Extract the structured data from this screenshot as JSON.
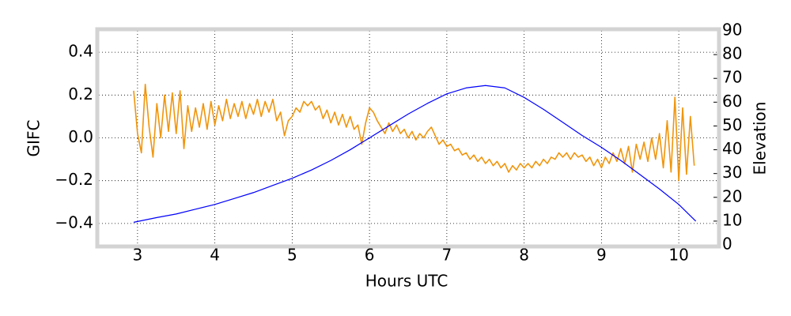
{
  "chart_data": {
    "type": "line",
    "x_label": "Hours UTC",
    "y_label": "GIFC",
    "y2_label": "Elevation",
    "xlim": [
      2.5,
      10.5
    ],
    "xticks": [
      3,
      4,
      5,
      6,
      7,
      8,
      9,
      10
    ],
    "ylim": [
      -0.5,
      0.5
    ],
    "yticks": [
      {
        "value": -0.4,
        "label": "−0.4"
      },
      {
        "value": -0.2,
        "label": "−0.2"
      },
      {
        "value": 0,
        "label": "0.0"
      },
      0.2,
      0.4
    ],
    "y2lim": [
      0,
      90
    ],
    "y2ticks": [
      0,
      10,
      20,
      30,
      40,
      50,
      60,
      70,
      80,
      90
    ],
    "grid": true,
    "series": [
      {
        "color": "#f0950c",
        "x": [
          2.95,
          3.0,
          3.05,
          3.1,
          3.15,
          3.2,
          3.25,
          3.3,
          3.35,
          3.4,
          3.45,
          3.5,
          3.55,
          3.6,
          3.65,
          3.7,
          3.75,
          3.8,
          3.85,
          3.9,
          3.95,
          4.0,
          4.05,
          4.1,
          4.15,
          4.2,
          4.25,
          4.3,
          4.35,
          4.4,
          4.45,
          4.5,
          4.55,
          4.6,
          4.65,
          4.7,
          4.75,
          4.8,
          4.85,
          4.9,
          4.95,
          5.0,
          5.05,
          5.1,
          5.15,
          5.2,
          5.25,
          5.3,
          5.35,
          5.4,
          5.45,
          5.5,
          5.55,
          5.6,
          5.65,
          5.7,
          5.75,
          5.8,
          5.85,
          5.9,
          5.95,
          6.0,
          6.05,
          6.1,
          6.15,
          6.2,
          6.25,
          6.3,
          6.35,
          6.4,
          6.45,
          6.5,
          6.55,
          6.6,
          6.65,
          6.7,
          6.75,
          6.8,
          6.85,
          6.9,
          6.95,
          7.0,
          7.05,
          7.1,
          7.15,
          7.2,
          7.25,
          7.3,
          7.35,
          7.4,
          7.45,
          7.5,
          7.55,
          7.6,
          7.65,
          7.7,
          7.75,
          7.8,
          7.85,
          7.9,
          7.95,
          8.0,
          8.05,
          8.1,
          8.15,
          8.2,
          8.25,
          8.3,
          8.35,
          8.4,
          8.45,
          8.5,
          8.55,
          8.6,
          8.65,
          8.7,
          8.75,
          8.8,
          8.85,
          8.9,
          8.95,
          9.0,
          9.05,
          9.1,
          9.15,
          9.2,
          9.25,
          9.3,
          9.35,
          9.4,
          9.45,
          9.5,
          9.55,
          9.6,
          9.65,
          9.7,
          9.75,
          9.8,
          9.85,
          9.9,
          9.95,
          10.0,
          10.05,
          10.1,
          10.15,
          10.2
        ],
        "values": [
          0.22,
          0.02,
          -0.07,
          0.25,
          0.05,
          -0.09,
          0.16,
          0.0,
          0.2,
          0.03,
          0.21,
          0.02,
          0.22,
          -0.05,
          0.15,
          0.03,
          0.14,
          0.05,
          0.16,
          0.04,
          0.17,
          0.06,
          0.15,
          0.08,
          0.18,
          0.09,
          0.16,
          0.1,
          0.17,
          0.09,
          0.16,
          0.11,
          0.18,
          0.1,
          0.17,
          0.12,
          0.18,
          0.08,
          0.12,
          0.01,
          0.08,
          0.1,
          0.14,
          0.12,
          0.17,
          0.15,
          0.17,
          0.13,
          0.15,
          0.09,
          0.13,
          0.07,
          0.12,
          0.06,
          0.11,
          0.05,
          0.1,
          0.04,
          0.06,
          -0.03,
          0.07,
          0.14,
          0.12,
          0.08,
          0.05,
          0.02,
          0.07,
          0.03,
          0.06,
          0.02,
          0.04,
          0.0,
          0.03,
          -0.01,
          0.02,
          0.0,
          0.03,
          0.05,
          0.01,
          -0.03,
          -0.01,
          -0.04,
          -0.03,
          -0.06,
          -0.05,
          -0.08,
          -0.07,
          -0.1,
          -0.08,
          -0.11,
          -0.09,
          -0.12,
          -0.1,
          -0.13,
          -0.11,
          -0.14,
          -0.12,
          -0.16,
          -0.13,
          -0.15,
          -0.12,
          -0.14,
          -0.12,
          -0.14,
          -0.11,
          -0.13,
          -0.1,
          -0.12,
          -0.09,
          -0.1,
          -0.07,
          -0.09,
          -0.07,
          -0.1,
          -0.07,
          -0.09,
          -0.08,
          -0.11,
          -0.09,
          -0.13,
          -0.1,
          -0.14,
          -0.09,
          -0.12,
          -0.07,
          -0.11,
          -0.05,
          -0.12,
          -0.04,
          -0.16,
          -0.03,
          -0.1,
          -0.02,
          -0.11,
          0.0,
          -0.1,
          0.02,
          -0.14,
          0.08,
          -0.16,
          0.19,
          -0.2,
          0.14,
          -0.17,
          0.1,
          -0.13
        ]
      },
      {
        "color": "#0000ff",
        "axis": "y2",
        "x": [
          2.95,
          3.25,
          3.5,
          3.75,
          4,
          4.25,
          4.5,
          4.75,
          5,
          5.25,
          5.5,
          5.75,
          6,
          6.25,
          6.5,
          6.75,
          7,
          7.25,
          7.5,
          7.75,
          8,
          8.25,
          8.5,
          8.75,
          9,
          9.25,
          9.5,
          9.75,
          10,
          10.22
        ],
        "values": [
          9.5,
          11.5,
          13,
          15,
          17,
          19.5,
          22,
          25,
          28,
          31.5,
          35.5,
          40,
          45,
          50,
          55,
          59.5,
          63.5,
          66,
          67,
          66,
          62,
          57,
          51.5,
          46,
          41,
          35.5,
          29.5,
          23.5,
          17,
          10
        ]
      }
    ]
  }
}
